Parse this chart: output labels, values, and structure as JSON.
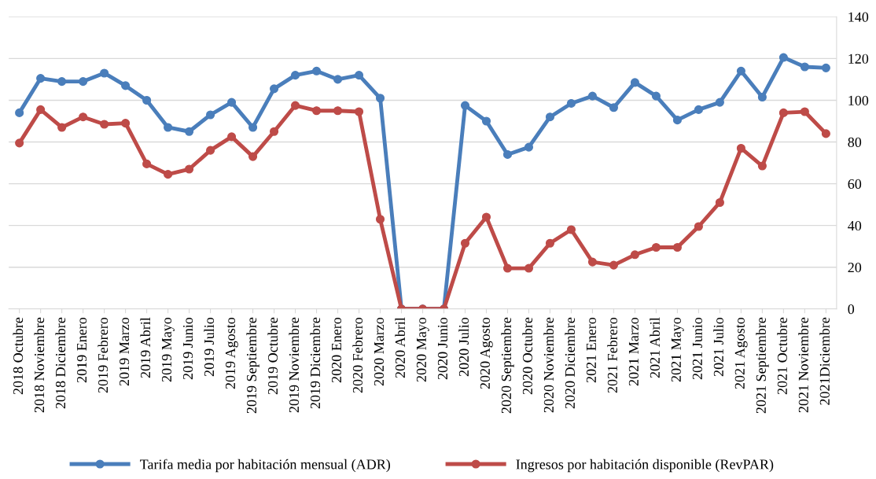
{
  "chart_data": {
    "type": "line",
    "categories": [
      "2018 Octubre",
      "2018 Noviembre",
      "2018 Diciembre",
      "2019 Enero",
      "2019 Febrero",
      "2019 Marzo",
      "2019 Abril",
      "2019 Mayo",
      "2019 Junio",
      "2019 Julio",
      "2019 Agosto",
      "2019 Septiembre",
      "2019 Octubre",
      "2019 Noviembre",
      "2019 Diciembre",
      "2020 Enero",
      "2020 Febrero",
      "2020 Marzo",
      "2020 Abril",
      "2020 Mayo",
      "2020 Junio",
      "2020 Julio",
      "2020 Agosto",
      "2020 Septiembre",
      "2020 Octubre",
      "2020 Noviembre",
      "2020 Diciembre",
      "2021 Enero",
      "2021 Febrero",
      "2021 Marzo",
      "2021 Abril",
      "2021 Mayo",
      "2021 Junio",
      "2021 Julio",
      "2021 Agosto",
      "2021 Septiembre",
      "2021 Octubre",
      "2021 Noviembre",
      "2021Diciembre"
    ],
    "series": [
      {
        "name": "Tarifa media por habitación mensual (ADR)",
        "color": "#4a7ebb",
        "values": [
          94,
          110.5,
          109,
          109,
          113,
          107,
          100,
          87,
          85,
          93,
          99,
          87,
          105.5,
          112,
          114,
          110,
          112,
          101,
          0,
          0,
          0,
          97.5,
          90,
          74,
          77.5,
          92,
          98.5,
          102,
          96.5,
          108.5,
          102,
          90.5,
          95.5,
          99,
          114,
          101.5,
          120.5,
          116,
          115.5
        ]
      },
      {
        "name": "Ingresos por habitación disponible (RevPAR)",
        "color": "#be4b48",
        "values": [
          79.5,
          95.5,
          87,
          92,
          88.5,
          89,
          69.5,
          64.5,
          67,
          76,
          82.5,
          73,
          85,
          97.5,
          95,
          95,
          94.5,
          43,
          0,
          0,
          0,
          31.5,
          44,
          19.5,
          19.5,
          31.5,
          38,
          22.5,
          21,
          26,
          29.5,
          29.5,
          39.5,
          51,
          77,
          68.5,
          94,
          94.5,
          84
        ]
      }
    ],
    "ylim": [
      0,
      140
    ],
    "yticks": [
      0,
      20,
      40,
      60,
      80,
      100,
      120,
      140
    ],
    "grid": "y",
    "legend": "bottom",
    "marker": "circle",
    "line_style": "solid"
  }
}
